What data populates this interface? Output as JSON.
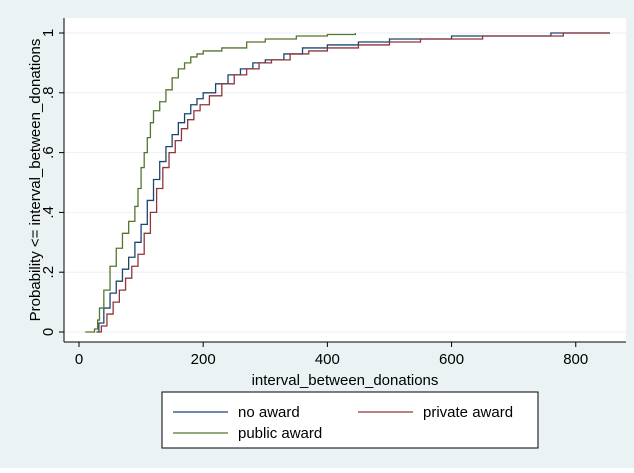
{
  "chart_data": {
    "type": "line",
    "title": "",
    "xlabel": "interval_between_donations",
    "ylabel": "Probability <= interval_between_donations",
    "xlim": [
      0,
      860
    ],
    "ylim": [
      0,
      1
    ],
    "x_ticks": [
      0,
      200,
      400,
      600,
      800
    ],
    "x_tick_labels": [
      "0",
      "200",
      "400",
      "600",
      "800"
    ],
    "y_ticks": [
      0,
      0.2,
      0.4,
      0.6,
      0.8,
      1
    ],
    "y_tick_labels": [
      "0",
      ".2",
      ".4",
      ".6",
      ".8",
      "1"
    ],
    "grid": "horizontal",
    "legend_position": "bottom",
    "series": [
      {
        "name": "no award",
        "color": "#1a476f",
        "x": [
          28,
          32,
          40,
          50,
          60,
          70,
          80,
          90,
          100,
          110,
          120,
          130,
          140,
          150,
          160,
          170,
          180,
          190,
          200,
          220,
          240,
          260,
          280,
          300,
          330,
          360,
          400,
          450,
          500,
          550,
          600,
          650,
          700,
          760,
          855
        ],
        "y": [
          0,
          0.03,
          0.08,
          0.13,
          0.17,
          0.21,
          0.25,
          0.3,
          0.36,
          0.44,
          0.51,
          0.57,
          0.62,
          0.66,
          0.7,
          0.73,
          0.76,
          0.78,
          0.8,
          0.83,
          0.86,
          0.88,
          0.9,
          0.91,
          0.93,
          0.95,
          0.96,
          0.97,
          0.98,
          0.98,
          0.99,
          0.99,
          0.99,
          1.0,
          1.0
        ]
      },
      {
        "name": "private award",
        "color": "#90353b",
        "x": [
          30,
          36,
          45,
          55,
          65,
          75,
          85,
          95,
          105,
          115,
          125,
          135,
          145,
          155,
          165,
          175,
          185,
          195,
          210,
          230,
          250,
          270,
          290,
          310,
          340,
          370,
          400,
          450,
          500,
          550,
          600,
          650,
          700,
          780,
          855
        ],
        "y": [
          0,
          0.02,
          0.06,
          0.1,
          0.14,
          0.18,
          0.22,
          0.26,
          0.33,
          0.4,
          0.48,
          0.55,
          0.6,
          0.64,
          0.68,
          0.71,
          0.74,
          0.76,
          0.79,
          0.83,
          0.86,
          0.88,
          0.9,
          0.91,
          0.93,
          0.94,
          0.95,
          0.96,
          0.97,
          0.98,
          0.98,
          0.99,
          0.99,
          1.0,
          1.0
        ]
      },
      {
        "name": "public award",
        "color": "#55752f",
        "x": [
          10,
          25,
          30,
          33,
          40,
          50,
          60,
          70,
          80,
          90,
          95,
          100,
          105,
          110,
          115,
          120,
          130,
          140,
          150,
          160,
          170,
          180,
          190,
          200,
          230,
          270,
          300,
          350,
          400,
          445
        ],
        "y": [
          0,
          0.01,
          0.04,
          0.08,
          0.14,
          0.22,
          0.28,
          0.33,
          0.37,
          0.42,
          0.48,
          0.55,
          0.6,
          0.65,
          0.7,
          0.74,
          0.77,
          0.81,
          0.85,
          0.88,
          0.9,
          0.92,
          0.93,
          0.94,
          0.95,
          0.97,
          0.98,
          0.99,
          0.995,
          1.0
        ]
      }
    ]
  }
}
